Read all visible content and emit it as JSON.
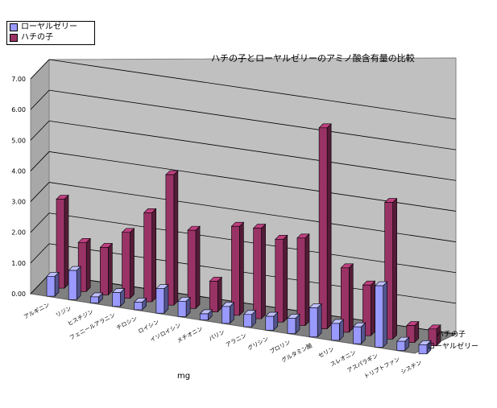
{
  "chart_data": {
    "type": "bar",
    "title": "ハチの子とローヤルゼリーのアミノ酸含有量の比較",
    "xlabel": "mg",
    "ylim": [
      0,
      7
    ],
    "yticks": [
      "0.00",
      "1.00",
      "2.00",
      "3.00",
      "4.00",
      "5.00",
      "6.00",
      "7.00"
    ],
    "categories": [
      "アルギニン",
      "リジン",
      "ヒスチジン",
      "フェニールアラニン",
      "チロシン",
      "ロイシン",
      "イソロイシン",
      "メチオニン",
      "バリン",
      "アラニン",
      "グリシン",
      "プロリン",
      "グルタミン酸",
      "セリン",
      "スレオニン",
      "アスパラギン",
      "トリプトファン",
      "シスチン"
    ],
    "series": [
      {
        "name": "ローヤルゼリー",
        "color": "#9999ff",
        "values": [
          0.65,
          0.95,
          0.2,
          0.45,
          0.25,
          0.8,
          0.5,
          0.2,
          0.55,
          0.4,
          0.45,
          0.5,
          0.95,
          0.55,
          0.55,
          2.0,
          0.3,
          0.3
        ]
      },
      {
        "name": "ハチの子",
        "color": "#993366",
        "values": [
          2.9,
          1.6,
          1.55,
          2.15,
          2.9,
          4.25,
          2.55,
          1.0,
          2.9,
          2.95,
          2.7,
          2.85,
          6.55,
          2.1,
          1.65,
          4.45,
          0.55,
          0.55
        ]
      }
    ],
    "depth_labels": [
      "ハチの子",
      "ローヤルゼリー"
    ],
    "grid": true,
    "legend": "top-left"
  }
}
